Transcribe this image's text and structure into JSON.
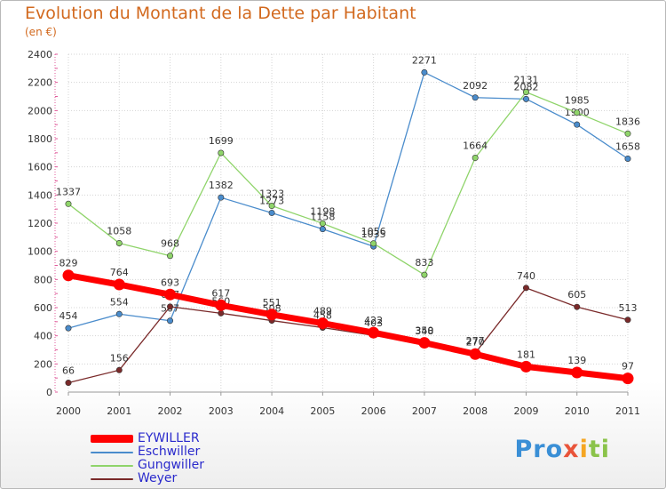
{
  "title": "Evolution du Montant de la Dette par Habitant",
  "subtitle": "(en €)",
  "logo": {
    "p1": "Pro",
    "p2": "x",
    "p3": "i",
    "p4": "ti"
  },
  "chart_data": {
    "type": "line",
    "x": [
      "2000",
      "2001",
      "2002",
      "2003",
      "2004",
      "2005",
      "2006",
      "2007",
      "2008",
      "2009",
      "2010",
      "2011"
    ],
    "ylim": [
      0,
      2400
    ],
    "yticks": [
      0,
      200,
      400,
      600,
      800,
      1000,
      1200,
      1400,
      1600,
      1800,
      2000,
      2200,
      2400
    ],
    "grid": true,
    "legend_position": "bottom-left",
    "series": [
      {
        "name": "EYWILLER",
        "color": "#ff0000",
        "values": [
          829,
          764,
          693,
          617,
          551,
          489,
          422,
          350,
          270,
          181,
          139,
          97
        ]
      },
      {
        "name": "Eschwiller",
        "color": "#4a8ccc",
        "values": [
          454,
          554,
          507,
          1382,
          1273,
          1158,
          1035,
          2271,
          2092,
          2082,
          1900,
          1658
        ]
      },
      {
        "name": "Gungwiller",
        "color": "#8fd46a",
        "values": [
          1337,
          1058,
          968,
          1699,
          1323,
          1198,
          1056,
          833,
          1664,
          2131,
          1985,
          1836
        ]
      },
      {
        "name": "Weyer",
        "color": "#7a2a2a",
        "values": [
          66,
          156,
          607,
          560,
          508,
          458,
          403,
          348,
          277,
          740,
          605,
          513
        ]
      }
    ]
  }
}
